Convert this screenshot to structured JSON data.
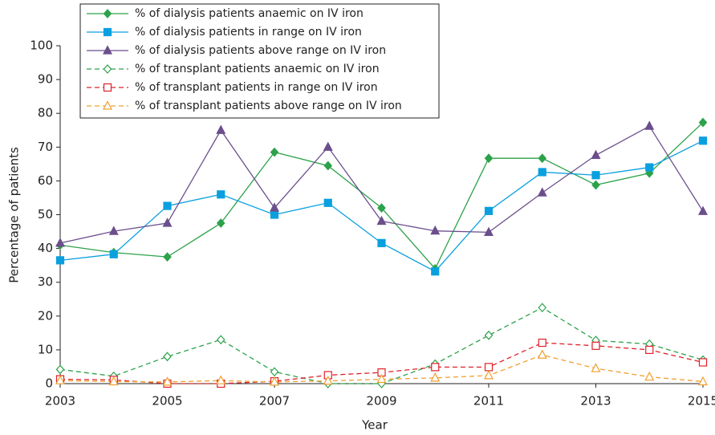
{
  "chart_data": {
    "type": "line",
    "xlabel": "Year",
    "ylabel": "Percentage of patients",
    "x": [
      2003,
      2004,
      2005,
      2006,
      2007,
      2008,
      2009,
      2010,
      2011,
      2012,
      2013,
      2014,
      2015
    ],
    "xlim": [
      2003,
      2015
    ],
    "xticks": [
      2003,
      2005,
      2007,
      2009,
      2011,
      2013,
      2015
    ],
    "ylim": [
      0,
      100
    ],
    "yticks": [
      0,
      10,
      20,
      30,
      40,
      50,
      60,
      70,
      80,
      90,
      100
    ],
    "legend": "upper left",
    "series": [
      {
        "name": "% of dialysis patients anaemic on IV iron",
        "color": "#2ca24a",
        "marker": "diamond",
        "filled": true,
        "dashed": false,
        "values": [
          41,
          38.8,
          37.5,
          47.5,
          68.5,
          64.5,
          52,
          34,
          66.7,
          66.7,
          58.8,
          62.3,
          77.3
        ]
      },
      {
        "name": "% of dialysis patients in range on IV iron",
        "color": "#0aa0e0",
        "marker": "square",
        "filled": true,
        "dashed": false,
        "values": [
          36.5,
          38.3,
          52.6,
          56,
          50,
          53.5,
          41.6,
          33.2,
          51.1,
          62.6,
          61.7,
          64,
          71.9
        ]
      },
      {
        "name": "% of dialysis patients above range on IV iron",
        "color": "#6b4f8c",
        "marker": "triangle",
        "filled": true,
        "dashed": false,
        "values": [
          41.6,
          45.1,
          47.5,
          75,
          52,
          70,
          48.1,
          45.2,
          44.8,
          56.5,
          67.6,
          76.2,
          51
        ]
      },
      {
        "name": "% of transplant patients anaemic on IV iron",
        "color": "#2ca24a",
        "marker": "diamond",
        "filled": false,
        "dashed": true,
        "values": [
          4.2,
          2.2,
          8,
          13,
          3.5,
          0,
          0,
          5.8,
          14.3,
          22.5,
          12.8,
          11.7,
          7
        ]
      },
      {
        "name": "% of transplant patients in range on IV iron",
        "color": "#e02028",
        "marker": "square",
        "filled": false,
        "dashed": true,
        "values": [
          1.3,
          1.1,
          0,
          0,
          0.7,
          2.5,
          3.3,
          4.9,
          4.9,
          12.1,
          11.2,
          10,
          6.3
        ]
      },
      {
        "name": "% of transplant patients above range on IV iron",
        "color": "#f0a030",
        "marker": "triangle",
        "filled": false,
        "dashed": true,
        "values": [
          0.9,
          0.6,
          0.5,
          0.9,
          0.5,
          0.8,
          1.3,
          1.7,
          2.4,
          8.5,
          4.5,
          2,
          0.6
        ]
      }
    ]
  }
}
